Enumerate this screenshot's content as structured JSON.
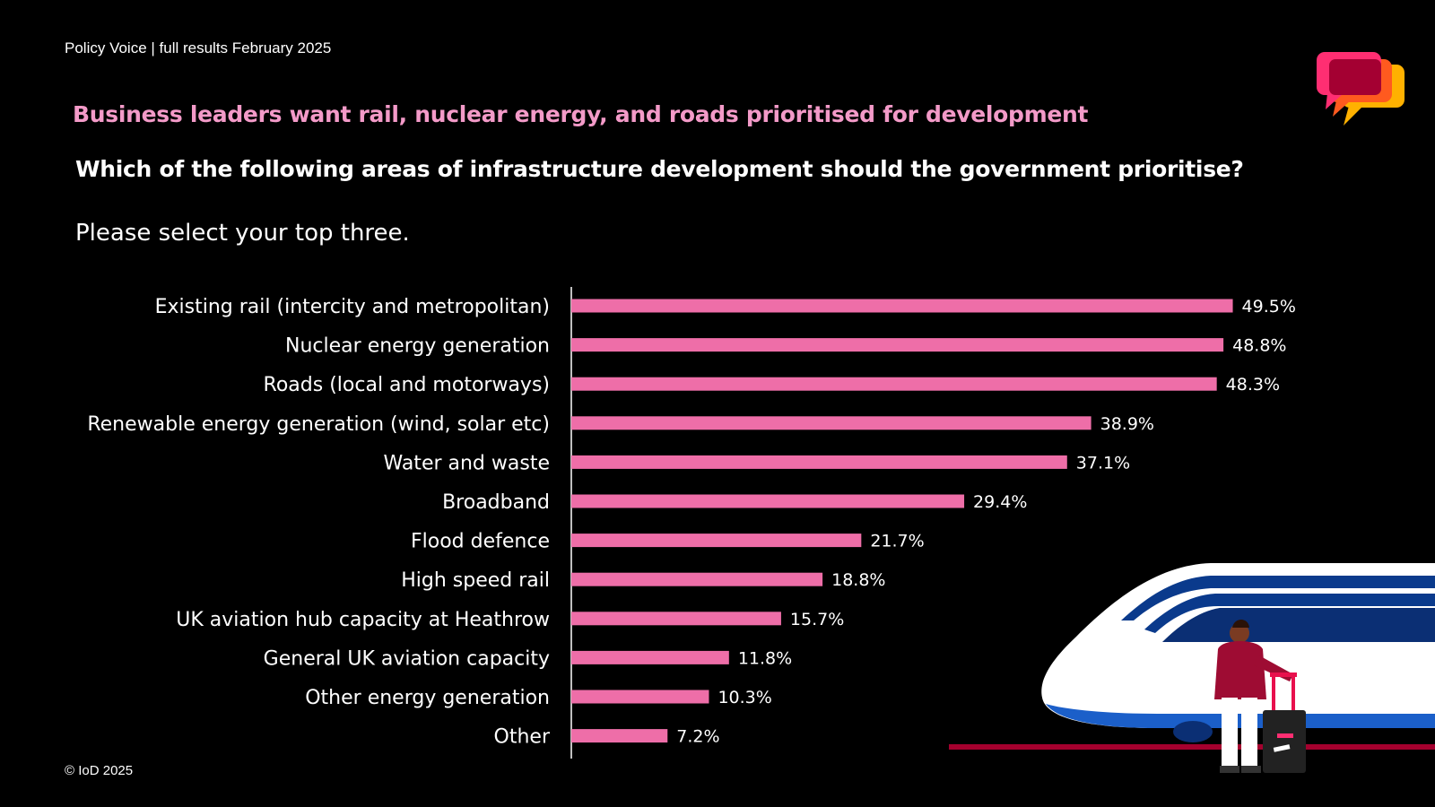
{
  "header": {
    "caption": "Policy Voice | full results February 2025",
    "headline": "Business leaders want rail, nuclear energy, and roads prioritised for development",
    "question": "Which of the following areas of infrastructure development should the government prioritise?",
    "instruction": "Please select your top three."
  },
  "footer": {
    "copyright": "© IoD 2025"
  },
  "colors": {
    "background": "#000000",
    "bar": "#ee6ea8",
    "headline": "#f39ac8"
  },
  "icons": {
    "logo": "speech-bubbles-logo-icon",
    "illustration": "train-traveller-illustration"
  },
  "chart_data": {
    "type": "bar",
    "orientation": "horizontal",
    "categories": [
      "Existing rail (intercity and metropolitan)",
      "Nuclear energy generation",
      "Roads (local and motorways)",
      "Renewable energy generation (wind, solar etc)",
      "Water and waste",
      "Broadband",
      "Flood defence",
      "High speed rail",
      "UK aviation hub capacity at Heathrow",
      "General UK aviation capacity",
      "Other energy generation",
      "Other"
    ],
    "values": [
      49.5,
      48.8,
      48.3,
      38.9,
      37.1,
      29.4,
      21.7,
      18.8,
      15.7,
      11.8,
      10.3,
      7.2
    ],
    "value_labels": [
      "49.5%",
      "48.8%",
      "48.3%",
      "38.9%",
      "37.1%",
      "29.4%",
      "21.7%",
      "18.8%",
      "15.7%",
      "11.8%",
      "10.3%",
      "7.2%"
    ],
    "unit": "%",
    "xlim": [
      0,
      50
    ],
    "grid": false,
    "title": "",
    "xlabel": "",
    "ylabel": ""
  }
}
